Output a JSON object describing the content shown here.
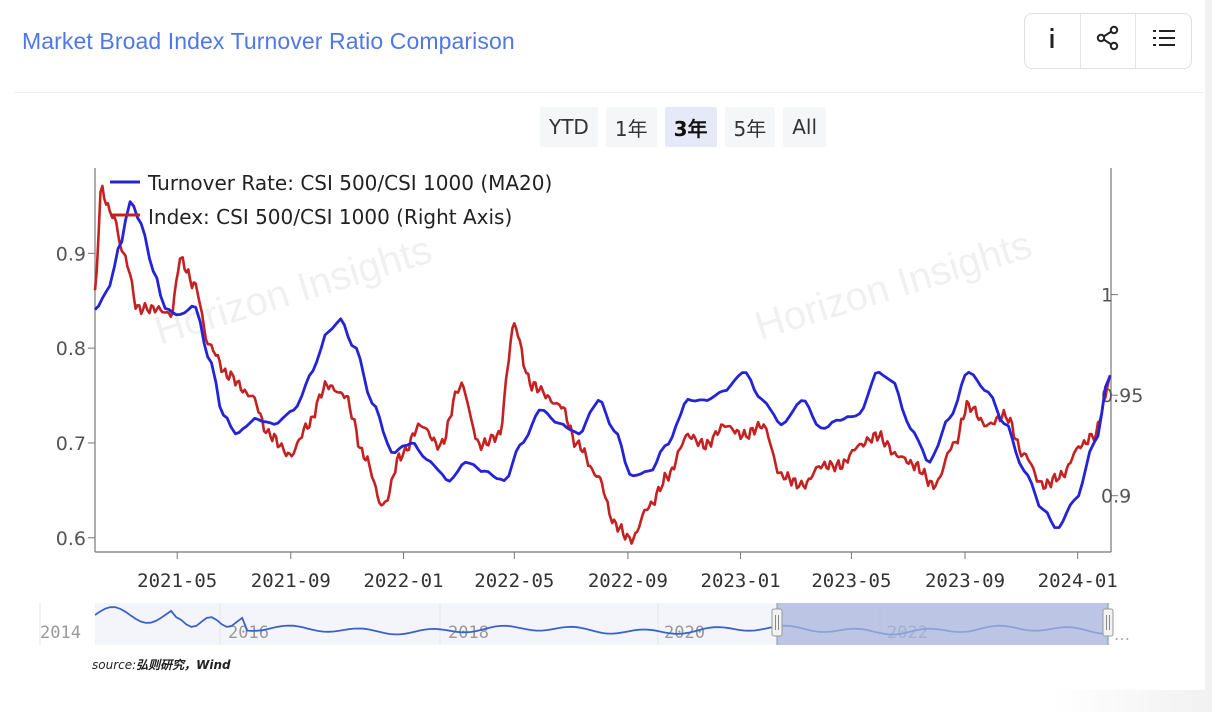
{
  "title": "Market Broad Index Turnover Ratio Comparison",
  "toolbox": {
    "info_glyph": "i",
    "share_glyph": "<",
    "list_glyph": "☰"
  },
  "range_buttons": [
    {
      "label": "YTD",
      "active": false
    },
    {
      "label": "1年",
      "active": false
    },
    {
      "label": "3年",
      "active": true
    },
    {
      "label": "5年",
      "active": false
    },
    {
      "label": "All",
      "active": false
    }
  ],
  "watermark": "Horizon Insights",
  "source": {
    "prefix": "source:",
    "text": "弘则研究，Wind"
  },
  "colors": {
    "turnover": "#2424d6",
    "index": "#c42222",
    "navigator": "#3a63c8",
    "selection": "#aab6dc"
  },
  "chart_data": {
    "type": "line",
    "x_ticks": [
      "2021-05",
      "2021-09",
      "2022-01",
      "2022-05",
      "2022-09",
      "2023-01",
      "2023-05",
      "2023-09",
      "2024-01"
    ],
    "x_range": [
      "2021-02-01",
      "2024-02-05"
    ],
    "left_axis": {
      "ticks": [
        0.6,
        0.7,
        0.8,
        0.9
      ],
      "range": [
        0.585,
        0.99
      ]
    },
    "right_axis": {
      "ticks": [
        0.9,
        0.95,
        1
      ],
      "range": [
        0.872,
        1.063
      ]
    },
    "legend_position": "top-left",
    "series": [
      {
        "name": "Turnover Rate: CSI 500/CSI 1000 (MA20)",
        "axis": "left",
        "points": [
          [
            "2021-02-01",
            0.84
          ],
          [
            "2021-02-15",
            0.86
          ],
          [
            "2021-03-01",
            0.91
          ],
          [
            "2021-03-12",
            0.955
          ],
          [
            "2021-03-24",
            0.93
          ],
          [
            "2021-04-06",
            0.88
          ],
          [
            "2021-04-20",
            0.84
          ],
          [
            "2021-05-05",
            0.835
          ],
          [
            "2021-05-20",
            0.845
          ],
          [
            "2021-06-05",
            0.79
          ],
          [
            "2021-06-20",
            0.73
          ],
          [
            "2021-07-05",
            0.71
          ],
          [
            "2021-07-25",
            0.725
          ],
          [
            "2021-08-15",
            0.72
          ],
          [
            "2021-09-05",
            0.735
          ],
          [
            "2021-09-25",
            0.775
          ],
          [
            "2021-10-10",
            0.815
          ],
          [
            "2021-10-25",
            0.83
          ],
          [
            "2021-11-10",
            0.8
          ],
          [
            "2021-11-30",
            0.74
          ],
          [
            "2021-12-20",
            0.69
          ],
          [
            "2022-01-10",
            0.7
          ],
          [
            "2022-01-30",
            0.68
          ],
          [
            "2022-02-20",
            0.66
          ],
          [
            "2022-03-10",
            0.68
          ],
          [
            "2022-03-30",
            0.67
          ],
          [
            "2022-04-20",
            0.66
          ],
          [
            "2022-05-10",
            0.7
          ],
          [
            "2022-05-30",
            0.735
          ],
          [
            "2022-06-20",
            0.72
          ],
          [
            "2022-07-10",
            0.71
          ],
          [
            "2022-08-01",
            0.745
          ],
          [
            "2022-08-20",
            0.71
          ],
          [
            "2022-09-05",
            0.665
          ],
          [
            "2022-09-25",
            0.67
          ],
          [
            "2022-10-15",
            0.7
          ],
          [
            "2022-11-05",
            0.745
          ],
          [
            "2022-11-25",
            0.745
          ],
          [
            "2022-12-15",
            0.755
          ],
          [
            "2023-01-05",
            0.775
          ],
          [
            "2023-01-25",
            0.745
          ],
          [
            "2023-02-15",
            0.72
          ],
          [
            "2023-03-10",
            0.745
          ],
          [
            "2023-03-30",
            0.715
          ],
          [
            "2023-04-20",
            0.725
          ],
          [
            "2023-05-10",
            0.73
          ],
          [
            "2023-05-30",
            0.775
          ],
          [
            "2023-06-15",
            0.765
          ],
          [
            "2023-07-05",
            0.715
          ],
          [
            "2023-07-25",
            0.68
          ],
          [
            "2023-08-15",
            0.725
          ],
          [
            "2023-09-05",
            0.775
          ],
          [
            "2023-09-25",
            0.755
          ],
          [
            "2023-10-15",
            0.72
          ],
          [
            "2023-11-05",
            0.67
          ],
          [
            "2023-11-25",
            0.63
          ],
          [
            "2023-12-10",
            0.61
          ],
          [
            "2023-12-30",
            0.64
          ],
          [
            "2024-01-20",
            0.7
          ],
          [
            "2024-02-05",
            0.77
          ]
        ]
      },
      {
        "name": "Index: CSI 500/CSI 1000 (Right Axis)",
        "axis": "right",
        "points": [
          [
            "2021-02-01",
            1.0
          ],
          [
            "2021-02-08",
            1.052
          ],
          [
            "2021-02-20",
            1.04
          ],
          [
            "2021-03-05",
            1.02
          ],
          [
            "2021-03-20",
            0.993
          ],
          [
            "2021-04-10",
            0.993
          ],
          [
            "2021-04-25",
            0.99
          ],
          [
            "2021-05-05",
            1.017
          ],
          [
            "2021-05-20",
            1.005
          ],
          [
            "2021-06-05",
            0.975
          ],
          [
            "2021-06-25",
            0.96
          ],
          [
            "2021-07-20",
            0.95
          ],
          [
            "2021-08-10",
            0.93
          ],
          [
            "2021-09-01",
            0.92
          ],
          [
            "2021-09-20",
            0.935
          ],
          [
            "2021-10-10",
            0.955
          ],
          [
            "2021-10-30",
            0.95
          ],
          [
            "2021-11-20",
            0.92
          ],
          [
            "2021-12-10",
            0.895
          ],
          [
            "2021-12-30",
            0.92
          ],
          [
            "2022-01-20",
            0.935
          ],
          [
            "2022-02-10",
            0.925
          ],
          [
            "2022-03-05",
            0.955
          ],
          [
            "2022-03-25",
            0.925
          ],
          [
            "2022-04-15",
            0.93
          ],
          [
            "2022-05-01",
            0.985
          ],
          [
            "2022-05-20",
            0.955
          ],
          [
            "2022-06-20",
            0.945
          ],
          [
            "2022-07-10",
            0.925
          ],
          [
            "2022-07-30",
            0.91
          ],
          [
            "2022-08-20",
            0.885
          ],
          [
            "2022-09-05",
            0.878
          ],
          [
            "2022-09-25",
            0.895
          ],
          [
            "2022-10-15",
            0.91
          ],
          [
            "2022-11-05",
            0.93
          ],
          [
            "2022-11-25",
            0.925
          ],
          [
            "2022-12-15",
            0.935
          ],
          [
            "2023-01-05",
            0.93
          ],
          [
            "2023-01-25",
            0.935
          ],
          [
            "2023-02-15",
            0.91
          ],
          [
            "2023-03-10",
            0.905
          ],
          [
            "2023-03-30",
            0.915
          ],
          [
            "2023-04-20",
            0.915
          ],
          [
            "2023-05-10",
            0.925
          ],
          [
            "2023-05-30",
            0.93
          ],
          [
            "2023-06-20",
            0.92
          ],
          [
            "2023-07-10",
            0.915
          ],
          [
            "2023-07-30",
            0.905
          ],
          [
            "2023-08-20",
            0.925
          ],
          [
            "2023-09-05",
            0.945
          ],
          [
            "2023-09-25",
            0.935
          ],
          [
            "2023-10-15",
            0.94
          ],
          [
            "2023-11-05",
            0.92
          ],
          [
            "2023-11-25",
            0.905
          ],
          [
            "2023-12-15",
            0.91
          ],
          [
            "2024-01-05",
            0.925
          ],
          [
            "2024-01-20",
            0.93
          ],
          [
            "2024-01-30",
            0.945
          ],
          [
            "2024-02-05",
            0.96
          ]
        ]
      }
    ],
    "navigator": {
      "labels": [
        "2014",
        "2016",
        "2018",
        "2020",
        "2022"
      ],
      "selection": [
        "2021-02-01",
        "2024-02-05"
      ]
    }
  }
}
